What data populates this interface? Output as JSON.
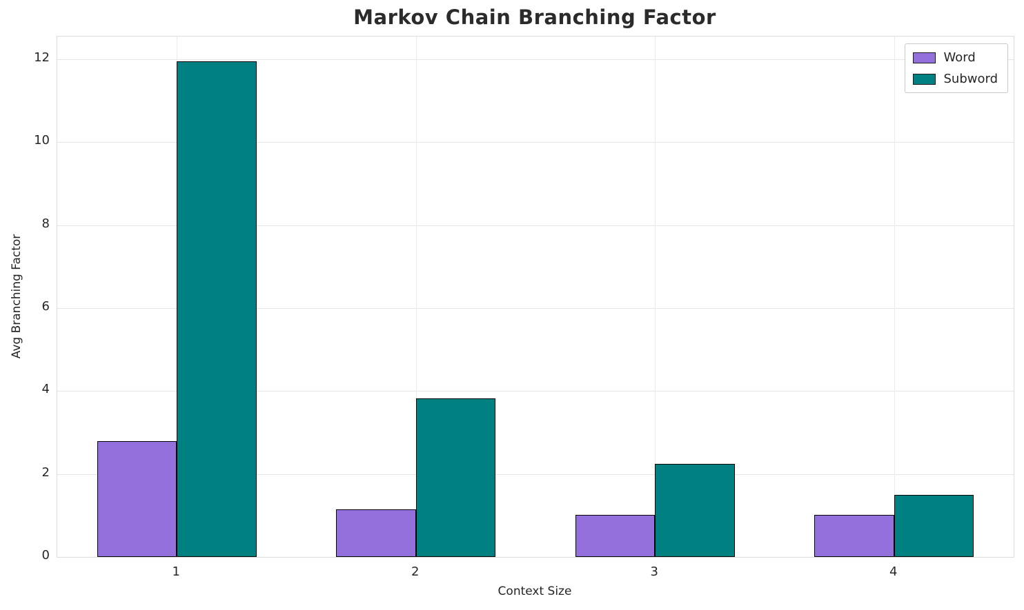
{
  "chart_data": {
    "type": "bar",
    "title": "Markov Chain Branching Factor",
    "xlabel": "Context Size",
    "ylabel": "Avg Branching Factor",
    "categories": [
      "1",
      "2",
      "3",
      "4"
    ],
    "series": [
      {
        "name": "Word",
        "color": "#9370db",
        "values": [
          2.8,
          1.15,
          1.02,
          1.02
        ]
      },
      {
        "name": "Subword",
        "color": "#008080",
        "values": [
          11.95,
          3.82,
          2.25,
          1.5
        ]
      }
    ],
    "ylim": [
      0,
      12.55
    ],
    "yticks": [
      0,
      2,
      4,
      6,
      8,
      10,
      12
    ],
    "grid": true,
    "legend_position": "upper right",
    "bar_edge_color": "#000000"
  }
}
